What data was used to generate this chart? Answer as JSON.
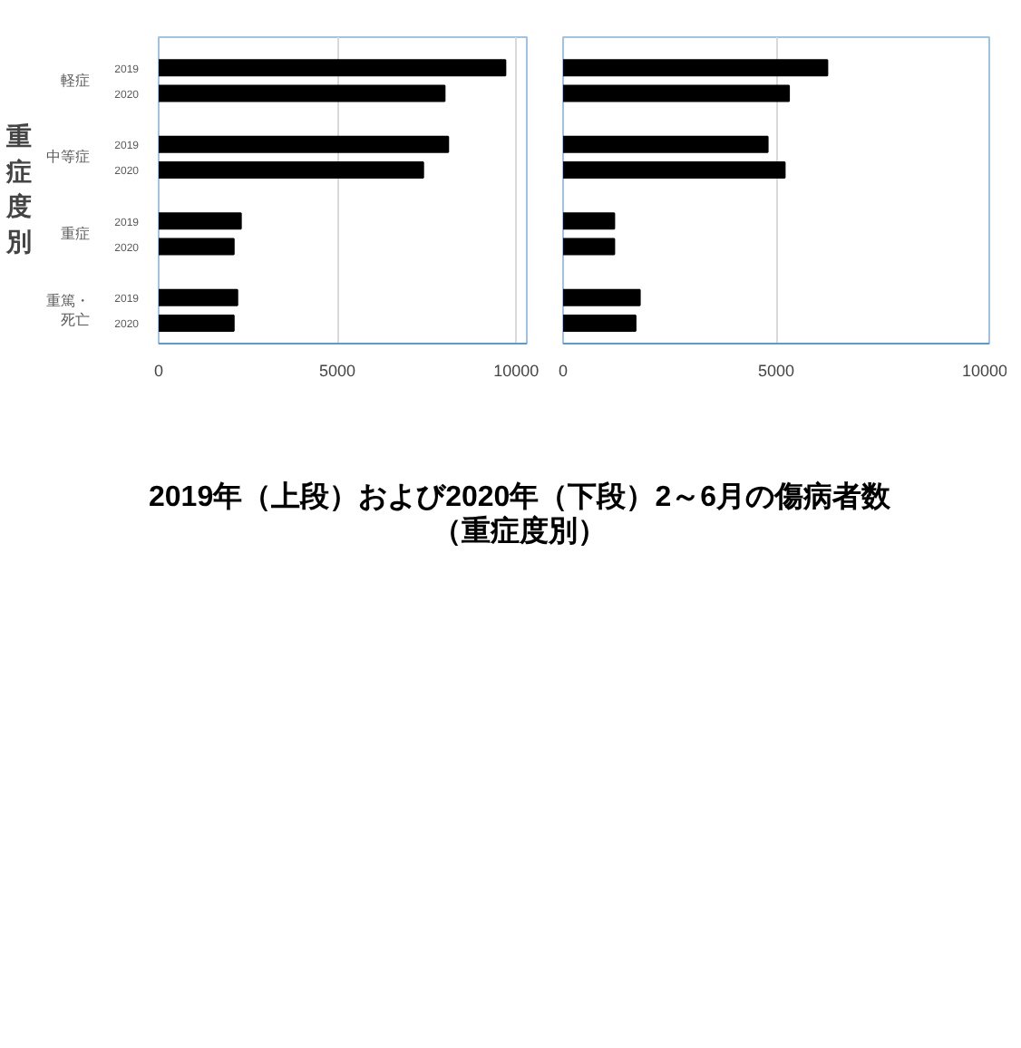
{
  "chart_data": [
    {
      "type": "bar",
      "orientation": "horizontal",
      "title": "2019年（上段）および2020年（下段）2～6月の傷病者数",
      "subtitle": "（重症度別）",
      "ylabel": "重症度別",
      "categories": [
        "2019",
        "2020",
        "2019",
        "2020",
        "2019",
        "2020",
        "2019",
        "2020"
      ],
      "annotations": [
        "軽症",
        "中等症",
        "重症",
        "重篤・死亡"
      ],
      "values": [
        9700,
        8000,
        8100,
        7400,
        2300,
        2100,
        2200,
        2100
      ],
      "color": "#000000",
      "xlim": [
        0,
        10300
      ],
      "xticks": [
        0,
        5000,
        10000
      ],
      "grid": "x"
    },
    {
      "type": "bar",
      "orientation": "horizontal",
      "categories": [
        "2019",
        "2020",
        "2019",
        "2020",
        "2019",
        "2020",
        "2019",
        "2020"
      ],
      "values": [
        6200,
        5300,
        4800,
        5200,
        1200,
        1200,
        1800,
        1700
      ],
      "color": "#000000",
      "xlim": [
        0,
        10000
      ],
      "xticks": [
        0,
        5000,
        10000
      ],
      "grid": "x",
      "tick_labels": "x"
    }
  ]
}
